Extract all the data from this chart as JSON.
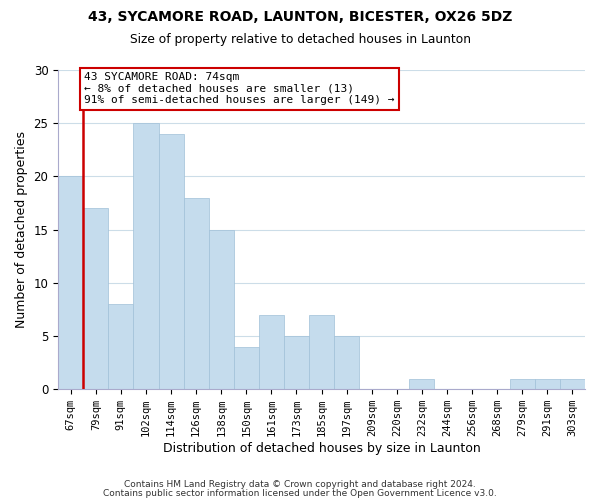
{
  "title1": "43, SYCAMORE ROAD, LAUNTON, BICESTER, OX26 5DZ",
  "title2": "Size of property relative to detached houses in Launton",
  "xlabel": "Distribution of detached houses by size in Launton",
  "ylabel": "Number of detached properties",
  "bar_labels": [
    "67sqm",
    "79sqm",
    "91sqm",
    "102sqm",
    "114sqm",
    "126sqm",
    "138sqm",
    "150sqm",
    "161sqm",
    "173sqm",
    "185sqm",
    "197sqm",
    "209sqm",
    "220sqm",
    "232sqm",
    "244sqm",
    "256sqm",
    "268sqm",
    "279sqm",
    "291sqm",
    "303sqm"
  ],
  "bar_values": [
    20,
    17,
    8,
    25,
    24,
    18,
    15,
    4,
    7,
    5,
    7,
    5,
    0,
    0,
    1,
    0,
    0,
    0,
    1,
    1,
    1
  ],
  "bar_color": "#c5dced",
  "highlight_color": "#cc0000",
  "annotation_title": "43 SYCAMORE ROAD: 74sqm",
  "annotation_line1": "← 8% of detached houses are smaller (13)",
  "annotation_line2": "91% of semi-detached houses are larger (149) →",
  "annotation_box_color": "#ffffff",
  "annotation_box_edge_color": "#cc0000",
  "ylim": [
    0,
    30
  ],
  "yticks": [
    0,
    5,
    10,
    15,
    20,
    25,
    30
  ],
  "footer1": "Contains HM Land Registry data © Crown copyright and database right 2024.",
  "footer2": "Contains public sector information licensed under the Open Government Licence v3.0.",
  "background_color": "#ffffff",
  "grid_color": "#ccdde8"
}
